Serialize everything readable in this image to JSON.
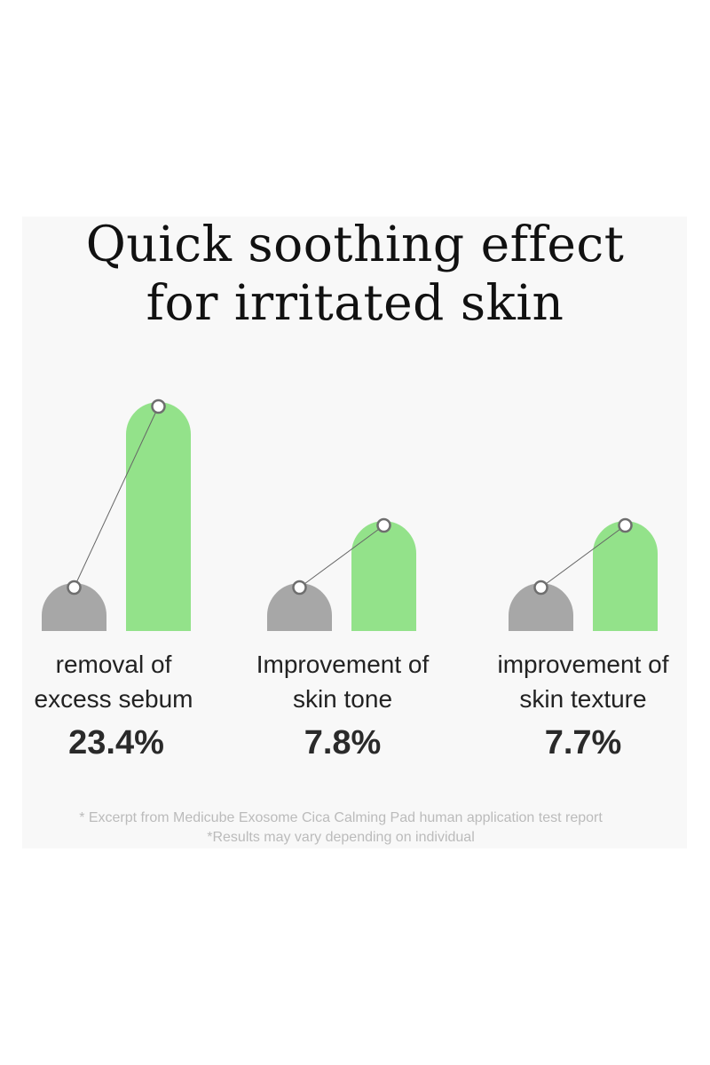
{
  "title": {
    "line1": "Quick soothing effect",
    "line2": "for irritated skin"
  },
  "chart_data": {
    "type": "bar",
    "categories": [
      [
        "removal of",
        "excess sebum"
      ],
      [
        "Improvement of",
        "skin tone"
      ],
      [
        "improvement of",
        "skin texture"
      ]
    ],
    "values": [
      23.4,
      7.8,
      7.7
    ],
    "value_labels": [
      "23.4%",
      "7.8%",
      "7.7%"
    ],
    "colors": {
      "before": "#a7a7a7",
      "after": "#93e28a",
      "marker_stroke": "#6e6e6e",
      "connector": "#666666"
    }
  },
  "footnotes": {
    "line1": "* Excerpt from Medicube Exosome Cica Calming Pad human application test report",
    "line2": "*Results may vary depending on individual"
  }
}
